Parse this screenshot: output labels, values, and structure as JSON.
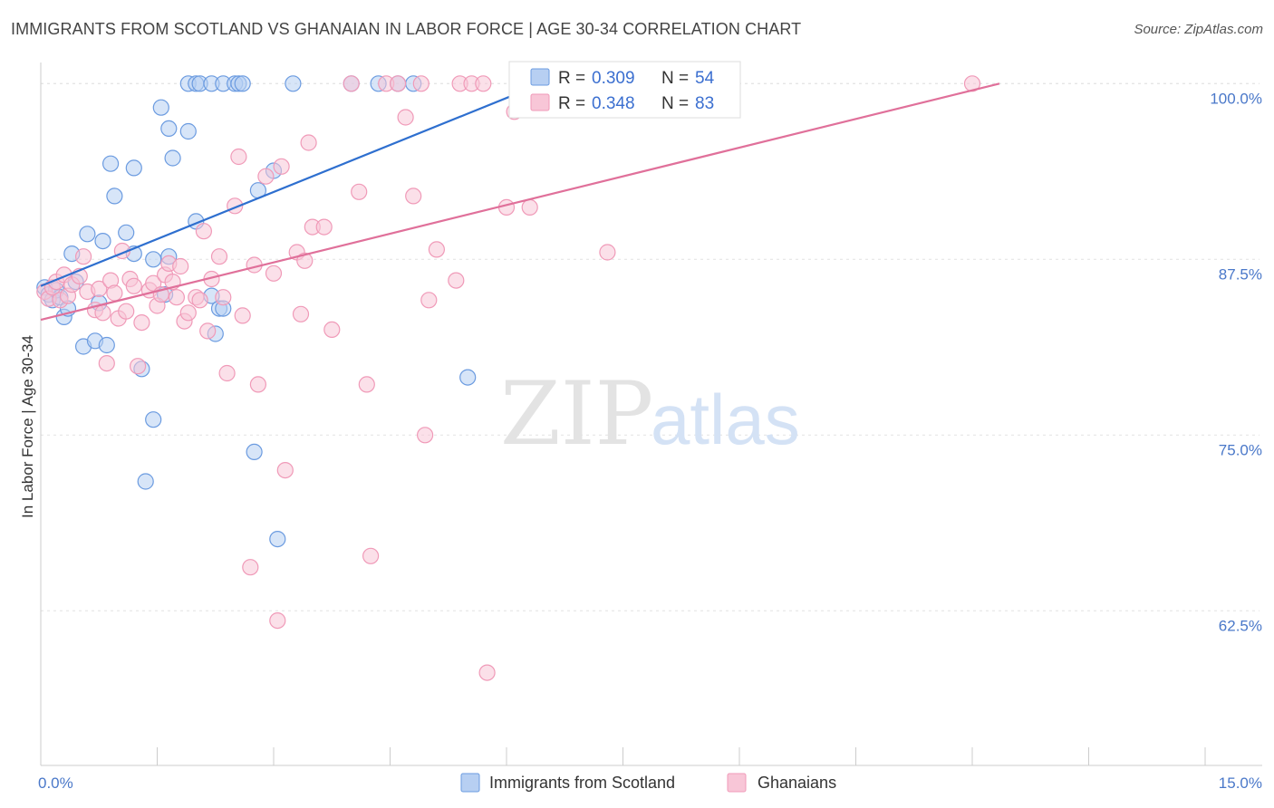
{
  "title": "IMMIGRANTS FROM SCOTLAND VS GHANAIAN IN LABOR FORCE | AGE 30-34 CORRELATION CHART",
  "source": "Source: ZipAtlas.com",
  "watermark": {
    "zip": "ZIP",
    "atlas": "atlas"
  },
  "colors": {
    "blue": "#6b9be0",
    "blue_fill": "#b7cff2",
    "pink": "#f09ab8",
    "pink_fill": "#f8c6d7",
    "blue_line": "#2e6fcf",
    "pink_line": "#e0709a"
  },
  "legend": {
    "items": [
      {
        "r_label": "R =",
        "r_value": "0.309",
        "n_label": "N =",
        "n_value": "54"
      },
      {
        "r_label": "R =",
        "r_value": "0.348",
        "n_label": "N =",
        "n_value": "83"
      }
    ]
  },
  "chart_data": {
    "type": "scatter",
    "title": "IMMIGRANTS FROM SCOTLAND VS GHANAIAN IN LABOR FORCE | AGE 30-34 CORRELATION CHART",
    "xlabel": "",
    "ylabel": "In Labor Force | Age 30-34",
    "xlim": [
      0,
      15
    ],
    "ylim": [
      51.5,
      101.5
    ],
    "x_tick_labels": [
      "0.0%",
      "15.0%"
    ],
    "y_ticks": [
      62.5,
      75.0,
      87.5,
      100.0
    ],
    "y_tick_labels": [
      "62.5%",
      "75.0%",
      "87.5%",
      "100.0%"
    ],
    "grid": true,
    "legend_position": "top-center",
    "series": [
      {
        "name": "Immigrants from Scotland",
        "r": 0.309,
        "n": 54,
        "trend": {
          "x": [
            0,
            6.1
          ],
          "y": [
            85.6,
            99.2
          ]
        },
        "points": [
          [
            0.05,
            85.5
          ],
          [
            0.1,
            85.0
          ],
          [
            0.15,
            84.6
          ],
          [
            0.2,
            85.3
          ],
          [
            0.25,
            84.8
          ],
          [
            0.3,
            83.4
          ],
          [
            0.35,
            84.0
          ],
          [
            0.4,
            87.9
          ],
          [
            0.45,
            85.9
          ],
          [
            0.55,
            81.3
          ],
          [
            0.6,
            89.3
          ],
          [
            0.7,
            81.7
          ],
          [
            0.75,
            84.4
          ],
          [
            0.8,
            88.8
          ],
          [
            0.85,
            81.4
          ],
          [
            0.9,
            94.3
          ],
          [
            0.95,
            92.0
          ],
          [
            1.1,
            89.4
          ],
          [
            1.2,
            87.9
          ],
          [
            1.2,
            94.0
          ],
          [
            1.3,
            79.7
          ],
          [
            1.35,
            71.7
          ],
          [
            1.45,
            87.5
          ],
          [
            1.45,
            76.1
          ],
          [
            1.55,
            98.3
          ],
          [
            1.6,
            85.0
          ],
          [
            1.65,
            96.8
          ],
          [
            1.65,
            87.7
          ],
          [
            1.7,
            94.7
          ],
          [
            1.9,
            96.6
          ],
          [
            1.9,
            100.0
          ],
          [
            2.0,
            100.0
          ],
          [
            2.0,
            90.2
          ],
          [
            2.05,
            100.0
          ],
          [
            2.2,
            100.0
          ],
          [
            2.2,
            84.9
          ],
          [
            2.25,
            82.2
          ],
          [
            2.3,
            84.0
          ],
          [
            2.35,
            84.0
          ],
          [
            2.35,
            100.0
          ],
          [
            2.5,
            100.0
          ],
          [
            2.55,
            100.0
          ],
          [
            2.6,
            100.0
          ],
          [
            2.75,
            73.8
          ],
          [
            2.8,
            92.4
          ],
          [
            3.0,
            93.8
          ],
          [
            3.05,
            67.6
          ],
          [
            3.25,
            100.0
          ],
          [
            4.0,
            100.0
          ],
          [
            4.35,
            100.0
          ],
          [
            4.6,
            100.0
          ],
          [
            4.8,
            100.0
          ],
          [
            5.5,
            79.1
          ],
          [
            6.2,
            100.0
          ]
        ]
      },
      {
        "name": "Ghanaians",
        "r": 0.348,
        "n": 83,
        "trend": {
          "x": [
            0,
            12.35
          ],
          "y": [
            83.2,
            100.0
          ]
        },
        "points": [
          [
            0.05,
            85.2
          ],
          [
            0.1,
            84.7
          ],
          [
            0.15,
            85.5
          ],
          [
            0.2,
            85.9
          ],
          [
            0.25,
            84.6
          ],
          [
            0.3,
            86.4
          ],
          [
            0.35,
            84.9
          ],
          [
            0.4,
            85.7
          ],
          [
            0.5,
            86.3
          ],
          [
            0.55,
            87.7
          ],
          [
            0.6,
            85.2
          ],
          [
            0.7,
            83.9
          ],
          [
            0.75,
            85.4
          ],
          [
            0.8,
            83.7
          ],
          [
            0.85,
            80.1
          ],
          [
            0.9,
            86.0
          ],
          [
            0.95,
            85.1
          ],
          [
            1.0,
            83.3
          ],
          [
            1.05,
            88.1
          ],
          [
            1.1,
            83.8
          ],
          [
            1.15,
            86.1
          ],
          [
            1.2,
            85.6
          ],
          [
            1.25,
            79.9
          ],
          [
            1.3,
            83.0
          ],
          [
            1.4,
            85.3
          ],
          [
            1.45,
            85.8
          ],
          [
            1.5,
            84.2
          ],
          [
            1.55,
            85.0
          ],
          [
            1.6,
            86.4
          ],
          [
            1.65,
            87.2
          ],
          [
            1.7,
            85.9
          ],
          [
            1.75,
            84.8
          ],
          [
            1.8,
            87.0
          ],
          [
            1.85,
            83.1
          ],
          [
            1.9,
            83.7
          ],
          [
            2.0,
            84.8
          ],
          [
            2.05,
            84.6
          ],
          [
            2.1,
            89.5
          ],
          [
            2.15,
            82.4
          ],
          [
            2.2,
            86.1
          ],
          [
            2.3,
            87.7
          ],
          [
            2.35,
            84.8
          ],
          [
            2.4,
            79.4
          ],
          [
            2.5,
            91.3
          ],
          [
            2.55,
            94.8
          ],
          [
            2.6,
            83.5
          ],
          [
            2.7,
            65.6
          ],
          [
            2.75,
            87.1
          ],
          [
            2.8,
            78.6
          ],
          [
            2.9,
            93.4
          ],
          [
            3.0,
            86.5
          ],
          [
            3.05,
            61.8
          ],
          [
            3.1,
            94.1
          ],
          [
            3.15,
            72.5
          ],
          [
            3.3,
            88.0
          ],
          [
            3.35,
            83.6
          ],
          [
            3.4,
            87.4
          ],
          [
            3.45,
            95.8
          ],
          [
            3.5,
            89.8
          ],
          [
            3.65,
            89.8
          ],
          [
            3.75,
            82.5
          ],
          [
            4.0,
            100.0
          ],
          [
            4.1,
            92.3
          ],
          [
            4.2,
            78.6
          ],
          [
            4.25,
            66.4
          ],
          [
            4.45,
            100.0
          ],
          [
            4.6,
            100.0
          ],
          [
            4.7,
            97.6
          ],
          [
            4.8,
            92.0
          ],
          [
            4.9,
            100.0
          ],
          [
            4.95,
            75.0
          ],
          [
            5.0,
            84.6
          ],
          [
            5.1,
            88.2
          ],
          [
            5.35,
            86.0
          ],
          [
            5.4,
            100.0
          ],
          [
            5.55,
            100.0
          ],
          [
            5.7,
            100.0
          ],
          [
            5.75,
            58.1
          ],
          [
            6.0,
            91.2
          ],
          [
            6.1,
            98.0
          ],
          [
            6.3,
            91.2
          ],
          [
            7.3,
            88.0
          ],
          [
            12.0,
            100.0
          ]
        ]
      }
    ]
  }
}
